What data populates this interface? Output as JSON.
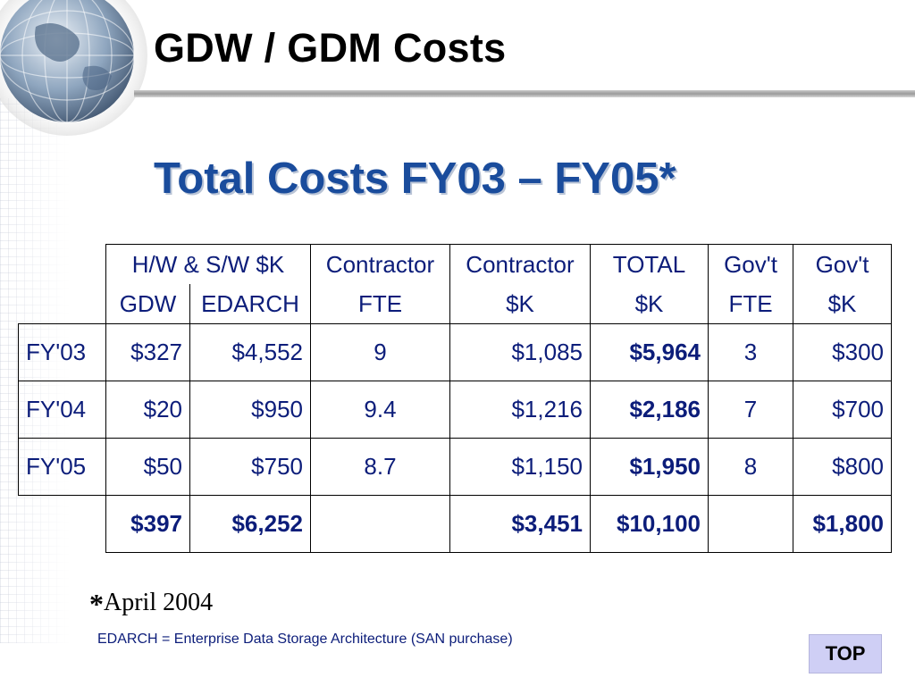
{
  "slide": {
    "title": "GDW / GDM Costs",
    "subtitle": "Total Costs FY03 – FY05*"
  },
  "table": {
    "header": {
      "hw_sw_label": "H/W & S/W $K",
      "gdw": "GDW",
      "edarch": "EDARCH",
      "contractor_fte_1": "Contractor",
      "contractor_fte_2": "FTE",
      "contractor_k_1": "Contractor",
      "contractor_k_2": "$K",
      "total_1": "TOTAL",
      "total_2": "$K",
      "govt_fte_1": "Gov't",
      "govt_fte_2": "FTE",
      "govt_k_1": "Gov't",
      "govt_k_2": "$K"
    },
    "rows": [
      {
        "year": "FY'03",
        "gdw": "$327",
        "edarch": "$4,552",
        "contractor_fte": "9",
        "contractor_k": "$1,085",
        "total": "$5,964",
        "govt_fte": "3",
        "govt_k": "$300"
      },
      {
        "year": "FY'04",
        "gdw": "$20",
        "edarch": "$950",
        "contractor_fte": "9.4",
        "contractor_k": "$1,216",
        "total": "$2,186",
        "govt_fte": "7",
        "govt_k": "$700"
      },
      {
        "year": "FY'05",
        "gdw": "$50",
        "edarch": "$750",
        "contractor_fte": "8.7",
        "contractor_k": "$1,150",
        "total": "$1,950",
        "govt_fte": "8",
        "govt_k": "$800"
      }
    ],
    "totals": {
      "gdw": "$397",
      "edarch": "$6,252",
      "contractor_fte": "",
      "contractor_k": "$3,451",
      "total": "$10,100",
      "govt_fte": "",
      "govt_k": "$1,800"
    }
  },
  "footnote": {
    "star": "*",
    "text": "April 2004"
  },
  "note": "EDARCH = Enterprise Data Storage Architecture (SAN purchase)",
  "nav": {
    "top_label": "TOP"
  }
}
